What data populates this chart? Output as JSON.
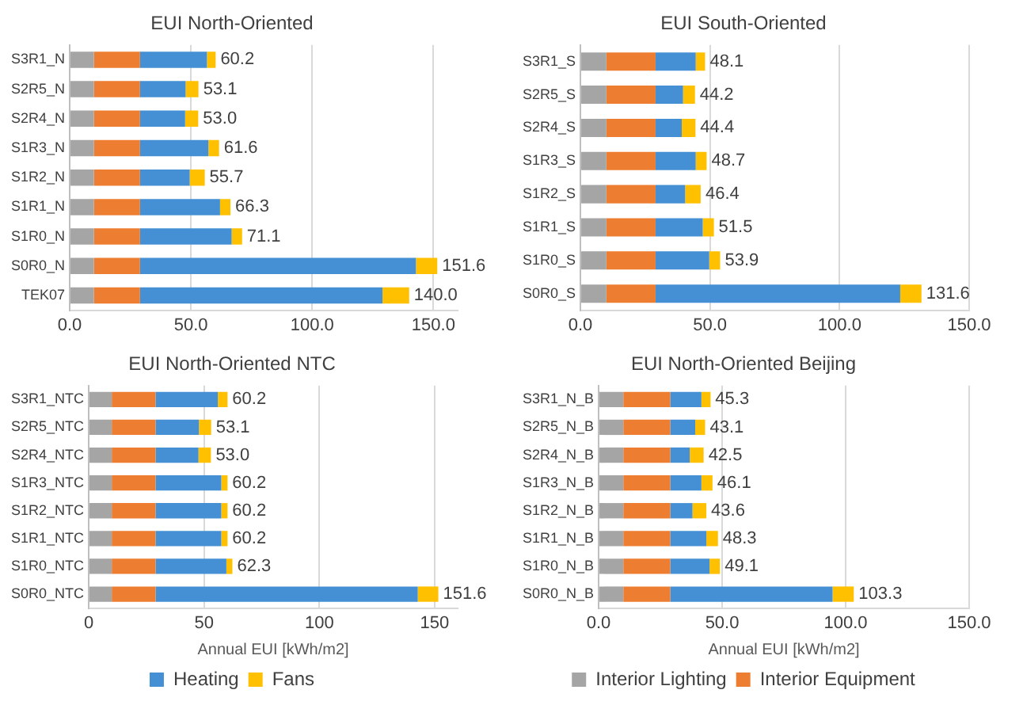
{
  "chart_data": [
    {
      "type": "bar",
      "orientation": "horizontal",
      "stacked": true,
      "title": "EUI North-Oriented",
      "categories": [
        "S3R1_N",
        "S2R5_N",
        "S2R4_N",
        "S1R3_N",
        "S1R2_N",
        "S1R1_N",
        "S1R0_N",
        "S0R0_N",
        "TEK07"
      ],
      "series": [
        {
          "color": "#a5a5a5",
          "values": [
            10,
            10,
            10,
            10,
            10,
            10,
            10,
            10,
            10
          ]
        },
        {
          "color": "#ed7d31",
          "values": [
            19,
            19,
            19,
            19,
            19,
            19,
            19,
            19,
            19
          ]
        },
        {
          "color": "#4590d4",
          "values": [
            27.6,
            18.8,
            18.6,
            28.2,
            20.5,
            33.0,
            37.8,
            113.8,
            100.0
          ]
        },
        {
          "color": "#ffc000",
          "values": [
            3.6,
            5.3,
            5.4,
            4.4,
            6.2,
            4.3,
            4.3,
            8.8,
            11.0
          ]
        }
      ],
      "totals": [
        "60.2",
        "53.1",
        "53.0",
        "61.6",
        "55.7",
        "66.3",
        "71.1",
        "151.6",
        "140.0"
      ],
      "xlim": [
        0,
        160
      ],
      "xticks": [
        {
          "value": 0,
          "label": "0.0"
        },
        {
          "value": 50,
          "label": "50.0"
        },
        {
          "value": 100,
          "label": "100.0"
        },
        {
          "value": 150,
          "label": "150.0"
        }
      ],
      "grid": "x"
    },
    {
      "type": "bar",
      "orientation": "horizontal",
      "stacked": true,
      "title": "EUI South-Oriented",
      "categories": [
        "S3R1_S",
        "S2R5_S",
        "S2R4_S",
        "S1R3_S",
        "S1R2_S",
        "S1R1_S",
        "S1R0_S",
        "S0R0_S"
      ],
      "series": [
        {
          "color": "#a5a5a5",
          "values": [
            10,
            10,
            10,
            10,
            10,
            10,
            10,
            10
          ]
        },
        {
          "color": "#ed7d31",
          "values": [
            19,
            19,
            19,
            19,
            19,
            19,
            19,
            19
          ]
        },
        {
          "color": "#4590d4",
          "values": [
            15.5,
            10.6,
            10.1,
            15.5,
            11.4,
            18.2,
            20.7,
            94.4
          ]
        },
        {
          "color": "#ffc000",
          "values": [
            3.6,
            4.6,
            5.3,
            4.2,
            6.0,
            4.3,
            4.2,
            8.2
          ]
        }
      ],
      "totals": [
        "48.1",
        "44.2",
        "44.4",
        "48.7",
        "46.4",
        "51.5",
        "53.9",
        "131.6"
      ],
      "xlim": [
        0,
        150
      ],
      "xticks": [
        {
          "value": 0,
          "label": "0.0"
        },
        {
          "value": 50,
          "label": "50.0"
        },
        {
          "value": 100,
          "label": "100.0"
        },
        {
          "value": 150,
          "label": "150.0"
        }
      ],
      "grid": "x"
    },
    {
      "type": "bar",
      "orientation": "horizontal",
      "stacked": true,
      "title": "EUI North-Oriented NTC",
      "xlabel": "Annual EUI [kWh/m2]",
      "categories": [
        "S3R1_NTC",
        "S2R5_NTC",
        "S2R4_NTC",
        "S1R3_NTC",
        "S1R2_NTC",
        "S1R1_NTC",
        "S1R0_NTC",
        "S0R0_NTC"
      ],
      "series": [
        {
          "color": "#a5a5a5",
          "values": [
            10,
            10,
            10,
            10,
            10,
            10,
            10,
            10
          ]
        },
        {
          "color": "#ed7d31",
          "values": [
            19,
            19,
            19,
            19,
            19,
            19,
            19,
            19
          ]
        },
        {
          "name": "Heating",
          "color": "#4590d4",
          "values": [
            27.0,
            18.8,
            18.6,
            28.5,
            28.5,
            28.5,
            30.7,
            113.7
          ]
        },
        {
          "name": "Fans",
          "color": "#ffc000",
          "values": [
            4.2,
            5.3,
            5.4,
            2.7,
            2.7,
            2.7,
            2.6,
            8.9
          ]
        }
      ],
      "totals": [
        "60.2",
        "53.1",
        "53.0",
        "60.2",
        "60.2",
        "60.2",
        "62.3",
        "151.6"
      ],
      "xlim": [
        0,
        160
      ],
      "xticks": [
        0,
        50,
        100,
        150
      ],
      "grid": "x",
      "legend": "bottom"
    },
    {
      "type": "bar",
      "orientation": "horizontal",
      "stacked": true,
      "title": "EUI North-Oriented Beijing",
      "xlabel": "Annual EUI [kWh/m2]",
      "categories": [
        "S3R1_N_B",
        "S2R5_N_B",
        "S2R4_N_B",
        "S1R3_N_B",
        "S1R2_N_B",
        "S1R1_N_B",
        "S1R0_N_B",
        "S0R0_N_B"
      ],
      "series": [
        {
          "name": "Interior Lighting",
          "color": "#a5a5a5",
          "values": [
            10,
            10,
            10,
            10,
            10,
            10,
            10,
            10
          ]
        },
        {
          "name": "Interior Equipment",
          "color": "#ed7d31",
          "values": [
            19,
            19,
            19,
            19,
            19,
            19,
            19,
            19
          ]
        },
        {
          "color": "#4590d4",
          "values": [
            12.6,
            10.1,
            7.9,
            12.6,
            9.0,
            14.6,
            15.9,
            65.7
          ]
        },
        {
          "color": "#ffc000",
          "values": [
            3.7,
            4.0,
            5.6,
            4.5,
            5.6,
            4.7,
            4.2,
            8.6
          ]
        }
      ],
      "totals": [
        "45.3",
        "43.1",
        "42.5",
        "46.1",
        "43.6",
        "48.3",
        "49.1",
        "103.3"
      ],
      "xlim": [
        0,
        150
      ],
      "xticks": [
        {
          "value": 0,
          "label": "0.0"
        },
        {
          "value": 50,
          "label": "50.0"
        },
        {
          "value": 100,
          "label": "100.0"
        },
        {
          "value": 150,
          "label": "150.0"
        }
      ],
      "grid": "x",
      "legend": "bottom"
    }
  ]
}
